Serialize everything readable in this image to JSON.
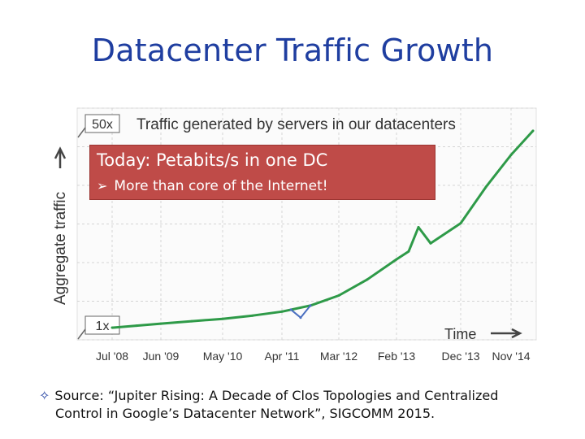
{
  "slide": {
    "title": "Datacenter Traffic Growth"
  },
  "overlay": {
    "headline": "Today: Petabits/s in one DC",
    "bullet_icon": "arrow-bullet-icon",
    "bullet": "More than core of the Internet!"
  },
  "source": {
    "icon": "four-point-star-icon",
    "line1": "Source:  “Jupiter Rising: A Decade of Clos Topologies and Centralized",
    "line2": "Control in  Google’s Datacenter Network”, SIGCOMM 2015."
  },
  "colors": {
    "title": "#1f3ea0",
    "overlay_fill": "#bf4b48",
    "series_green": "#2e9a48",
    "series_blue": "#4a6fc0",
    "grid": "#d4d4d4",
    "axis_text": "#333333"
  },
  "chart_data": {
    "type": "line",
    "title": "Traffic generated by servers in our datacenters",
    "ylabel": "Aggregate traffic",
    "xlabel": "Time",
    "x_tick_labels": [
      "Jul '08",
      "Jun '09",
      "May '10",
      "Apr '11",
      "Mar '12",
      "Feb '13",
      "Dec '13",
      "Nov '14"
    ],
    "y_annotations": [
      {
        "label": "1x",
        "value": 1
      },
      {
        "label": "50x",
        "value": 50
      }
    ],
    "ylim": [
      0,
      52
    ],
    "grid": true,
    "series": [
      {
        "color": "green",
        "x": [
          "Jul '08",
          "Jan '09",
          "Jun '09",
          "Dec '09",
          "May '10",
          "Nov '10",
          "Apr '11",
          "Oct '11",
          "Mar '12",
          "Sep '12",
          "Feb '13",
          "Apr '13",
          "May '13",
          "Jul '13",
          "Dec '13",
          "Jun '14",
          "Nov '14",
          "Jan '15"
        ],
        "values": [
          1,
          1.5,
          2,
          2.6,
          3.2,
          4,
          5,
          6.5,
          9,
          13,
          18,
          20,
          26,
          22,
          27,
          36,
          44,
          50
        ]
      },
      {
        "color": "blue",
        "x": [
          "Jun '11",
          "Aug '11",
          "Oct '11"
        ],
        "values": [
          5.5,
          3.5,
          6.5
        ]
      }
    ]
  }
}
